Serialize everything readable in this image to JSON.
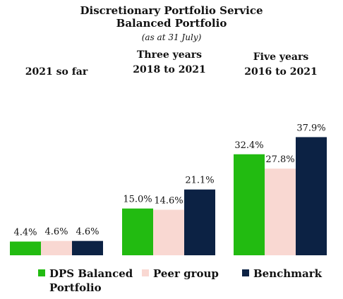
{
  "chart_data": {
    "type": "bar",
    "title": [
      "Discretionary Portfolio Service",
      "Balanced Portfolio"
    ],
    "subtitle": "(as at 31 July)",
    "categories": [
      [
        "2021 so far"
      ],
      [
        "Three years",
        "2018 to 2021"
      ],
      [
        "Five years",
        "2016 to 2021"
      ]
    ],
    "series": [
      {
        "name": [
          "DPS Balanced",
          "Portfolio"
        ],
        "color": "#22bb11",
        "values": [
          4.4,
          15.0,
          32.4
        ],
        "labels": [
          "4.4%",
          "15.0%",
          "32.4%"
        ]
      },
      {
        "name": [
          "Peer group"
        ],
        "color": "#f9d8d2",
        "values": [
          4.6,
          14.6,
          27.8
        ],
        "labels": [
          "4.6%",
          "14.6%",
          "27.8%"
        ]
      },
      {
        "name": [
          "Benchmark"
        ],
        "color": "#0c2244",
        "values": [
          4.6,
          21.1,
          37.9
        ],
        "labels": [
          "4.6%",
          "21.1%",
          "37.9%"
        ]
      }
    ],
    "ylim": [
      0,
      38
    ],
    "grid": false,
    "legend_position": "bottom"
  }
}
